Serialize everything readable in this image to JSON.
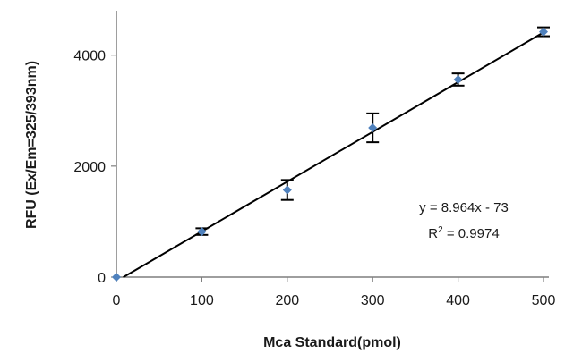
{
  "chart_data": {
    "type": "scatter",
    "title": "",
    "xlabel": "Mca Standard(pmol)",
    "ylabel": "RFU (Ex/Em=325/393nm)",
    "xlim": [
      0,
      500
    ],
    "ylim": [
      0,
      4800
    ],
    "x_ticks": [
      0,
      100,
      200,
      300,
      400,
      500
    ],
    "y_ticks": [
      0,
      2000,
      4000
    ],
    "x_tick_labels": [
      "0",
      "100",
      "200",
      "300",
      "400",
      "500"
    ],
    "y_tick_labels": [
      "0",
      "2000",
      "4000"
    ],
    "grid": false,
    "legend": "none",
    "series": [
      {
        "x": [
          0,
          100,
          200,
          300,
          400,
          500
        ],
        "y": [
          0,
          820,
          1570,
          2690,
          3560,
          4420
        ],
        "error": [
          0,
          60,
          180,
          260,
          110,
          80
        ],
        "marker_color": "#4f81bd"
      }
    ],
    "trendline": {
      "slope": 8.964,
      "intercept": -73,
      "x_range": [
        8,
        500
      ],
      "color": "#000000"
    },
    "annotations": {
      "equation": "y = 8.964x - 73",
      "r_squared_prefix": "R",
      "r_squared_sup": "2",
      "r_squared_value": " = 0.9974"
    }
  }
}
